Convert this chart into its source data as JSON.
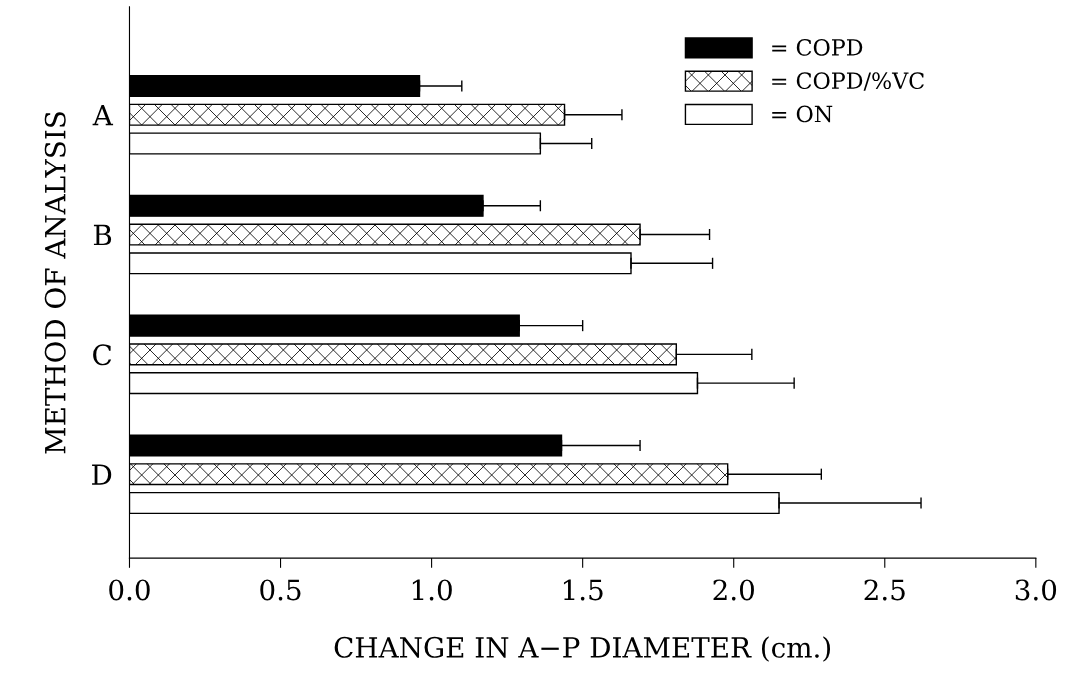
{
  "chart_data": {
    "type": "bar",
    "orientation": "horizontal",
    "xlabel": "CHANGE IN A−P DIAMETER (cm.)",
    "ylabel": "METHOD OF ANALYSIS",
    "categories": [
      "A",
      "B",
      "C",
      "D"
    ],
    "series": [
      {
        "name": "= COPD",
        "color": "#000000",
        "values": [
          0.96,
          1.17,
          1.29,
          1.43
        ],
        "errors": [
          [
            0.96,
            1.1
          ],
          [
            1.17,
            1.36
          ],
          [
            1.29,
            1.5
          ],
          [
            1.43,
            1.69
          ]
        ]
      },
      {
        "name": "= COPD/%VC",
        "color": "#000000",
        "values": [
          1.44,
          1.69,
          1.81,
          1.98
        ],
        "errors": [
          [
            1.44,
            1.63
          ],
          [
            1.69,
            1.92
          ],
          [
            1.81,
            2.06
          ],
          [
            1.98,
            2.29
          ]
        ]
      },
      {
        "name": "= ON",
        "color": "#ffffff",
        "values": [
          1.36,
          1.66,
          1.88,
          2.15
        ],
        "errors": [
          [
            1.36,
            1.53
          ],
          [
            1.66,
            1.93
          ],
          [
            1.88,
            2.2
          ],
          [
            2.15,
            2.62
          ]
        ]
      }
    ],
    "xlim": [
      0,
      3.0
    ],
    "xticks": [
      {
        "value": 0,
        "label": "0.0"
      },
      0.5,
      {
        "value": 1,
        "label": "1.0"
      },
      1.5,
      {
        "value": 2,
        "label": "2.0"
      },
      2.5,
      {
        "value": 3,
        "label": "3.0"
      }
    ],
    "legend": "top right",
    "grid": false
  }
}
